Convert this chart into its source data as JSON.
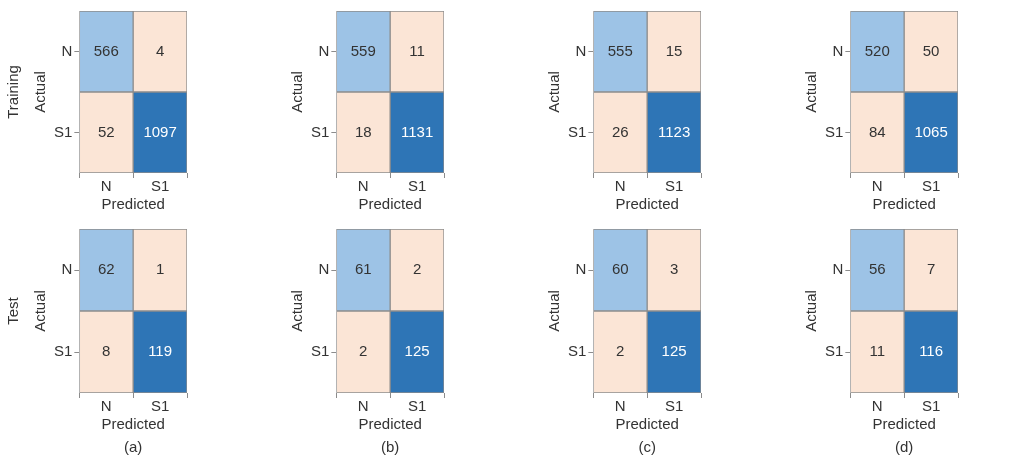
{
  "chart_data": [
    {
      "type": "heatmap",
      "annotations": [
        "Training"
      ],
      "xlabel": "Predicted",
      "ylabel": "Actual",
      "categories": [
        "N",
        "S1"
      ],
      "y_categories": [
        "N",
        "S1"
      ],
      "cells": [
        [
          566,
          4
        ],
        [
          52,
          1097
        ]
      ],
      "colors": [
        [
          "#9dc3e6",
          "#fbe5d6"
        ],
        [
          "#fbe5d6",
          "#2e75b6"
        ]
      ],
      "data_labels": true
    },
    {
      "type": "heatmap",
      "xlabel": "Predicted",
      "ylabel": "Actual",
      "categories": [
        "N",
        "S1"
      ],
      "y_categories": [
        "N",
        "S1"
      ],
      "cells": [
        [
          559,
          11
        ],
        [
          18,
          1131
        ]
      ],
      "colors": [
        [
          "#9dc3e6",
          "#fbe5d6"
        ],
        [
          "#fbe5d6",
          "#2e75b6"
        ]
      ],
      "data_labels": true
    },
    {
      "type": "heatmap",
      "xlabel": "Predicted",
      "ylabel": "Actual",
      "categories": [
        "N",
        "S1"
      ],
      "y_categories": [
        "N",
        "S1"
      ],
      "cells": [
        [
          555,
          15
        ],
        [
          26,
          1123
        ]
      ],
      "colors": [
        [
          "#9dc3e6",
          "#fbe5d6"
        ],
        [
          "#fbe5d6",
          "#2e75b6"
        ]
      ],
      "data_labels": true
    },
    {
      "type": "heatmap",
      "xlabel": "Predicted",
      "ylabel": "Actual",
      "categories": [
        "N",
        "S1"
      ],
      "y_categories": [
        "N",
        "S1"
      ],
      "cells": [
        [
          520,
          50
        ],
        [
          84,
          1065
        ]
      ],
      "colors": [
        [
          "#9dc3e6",
          "#fbe5d6"
        ],
        [
          "#fbe5d6",
          "#2e75b6"
        ]
      ],
      "data_labels": true
    },
    {
      "type": "heatmap",
      "title": "(a)",
      "annotations": [
        "Test"
      ],
      "xlabel": "Predicted",
      "ylabel": "Actual",
      "categories": [
        "N",
        "S1"
      ],
      "y_categories": [
        "N",
        "S1"
      ],
      "cells": [
        [
          62,
          1
        ],
        [
          8,
          119
        ]
      ],
      "colors": [
        [
          "#9dc3e6",
          "#fbe5d6"
        ],
        [
          "#fbe5d6",
          "#2e75b6"
        ]
      ],
      "data_labels": true
    },
    {
      "type": "heatmap",
      "title": "(b)",
      "xlabel": "Predicted",
      "ylabel": "Actual",
      "categories": [
        "N",
        "S1"
      ],
      "y_categories": [
        "N",
        "S1"
      ],
      "cells": [
        [
          61,
          2
        ],
        [
          2,
          125
        ]
      ],
      "colors": [
        [
          "#9dc3e6",
          "#fbe5d6"
        ],
        [
          "#fbe5d6",
          "#2e75b6"
        ]
      ],
      "data_labels": true
    },
    {
      "type": "heatmap",
      "title": "(c)",
      "xlabel": "Predicted",
      "ylabel": "Actual",
      "categories": [
        "N",
        "S1"
      ],
      "y_categories": [
        "N",
        "S1"
      ],
      "cells": [
        [
          60,
          3
        ],
        [
          2,
          125
        ]
      ],
      "colors": [
        [
          "#9dc3e6",
          "#fbe5d6"
        ],
        [
          "#fbe5d6",
          "#2e75b6"
        ]
      ],
      "data_labels": true
    },
    {
      "type": "heatmap",
      "title": "(d)",
      "xlabel": "Predicted",
      "ylabel": "Actual",
      "categories": [
        "N",
        "S1"
      ],
      "y_categories": [
        "N",
        "S1"
      ],
      "cells": [
        [
          56,
          7
        ],
        [
          11,
          116
        ]
      ],
      "colors": [
        [
          "#9dc3e6",
          "#fbe5d6"
        ],
        [
          "#fbe5d6",
          "#2e75b6"
        ]
      ],
      "data_labels": true
    }
  ]
}
